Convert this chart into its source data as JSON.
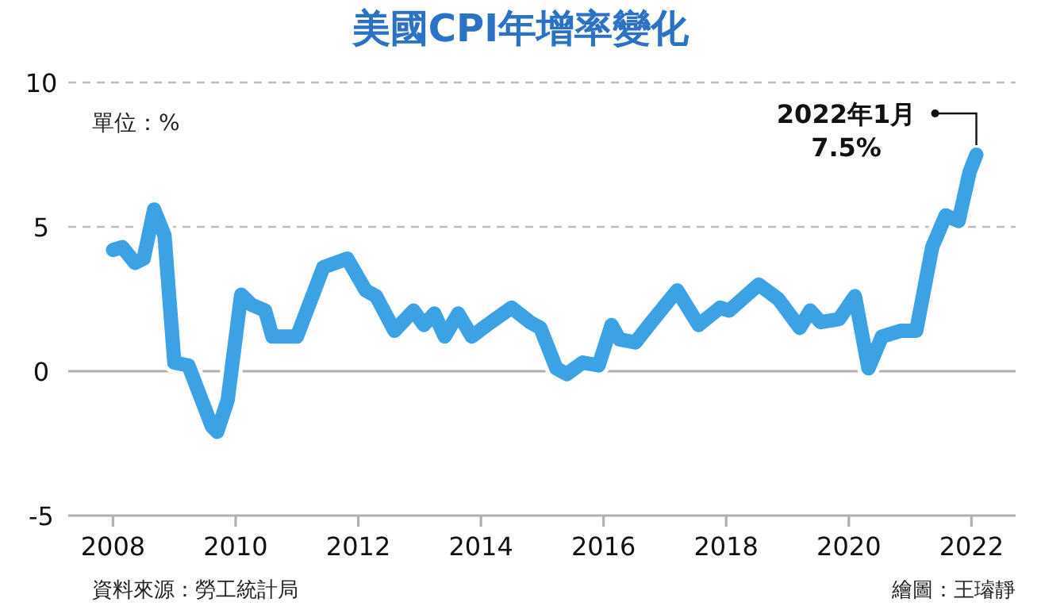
{
  "chart_data": {
    "type": "line",
    "title": "美國CPI年增率變化",
    "annotations": [
      "單位：%",
      {
        "text": "2022年1月\n7.5%",
        "x": 2022.08,
        "y": 7.5
      },
      "資料來源：勞工統計局",
      "繪圖：王璿靜"
    ],
    "x": [
      2008.0,
      2008.15,
      2008.36,
      2008.5,
      2008.67,
      2008.84,
      2009.0,
      2009.23,
      2009.61,
      2009.7,
      2009.87,
      2010.09,
      2010.26,
      2010.48,
      2010.6,
      2011.0,
      2011.43,
      2011.82,
      2012.12,
      2012.29,
      2012.59,
      2012.9,
      2013.07,
      2013.24,
      2013.41,
      2013.63,
      2013.85,
      2014.1,
      2014.5,
      2014.8,
      2014.97,
      2015.23,
      2015.4,
      2015.66,
      2015.92,
      2016.13,
      2016.26,
      2016.52,
      2016.78,
      2017.2,
      2017.55,
      2017.9,
      2018.05,
      2018.53,
      2018.85,
      2019.2,
      2019.37,
      2019.54,
      2019.84,
      2020.1,
      2020.32,
      2020.54,
      2020.84,
      2021.1,
      2021.36,
      2021.58,
      2021.79,
      2021.97,
      2022.08
    ],
    "series": [
      {
        "color": "#3da2e3",
        "values": [
          4.2,
          4.3,
          3.75,
          3.9,
          5.6,
          4.7,
          0.3,
          0.2,
          -1.9,
          -2.1,
          -1.0,
          2.65,
          2.3,
          2.1,
          1.2,
          1.2,
          3.6,
          3.9,
          2.8,
          2.6,
          1.4,
          2.1,
          1.6,
          2.0,
          1.2,
          2.0,
          1.2,
          1.6,
          2.2,
          1.7,
          1.5,
          0.1,
          -0.1,
          0.3,
          0.2,
          1.6,
          1.1,
          1.0,
          1.7,
          2.8,
          1.6,
          2.2,
          2.1,
          3.0,
          2.5,
          1.5,
          2.1,
          1.7,
          1.8,
          2.6,
          0.1,
          1.2,
          1.4,
          1.4,
          4.3,
          5.4,
          5.2,
          6.9,
          7.5
        ]
      }
    ],
    "xlim": [
      2007.27,
      2022.72
    ],
    "ylim": [
      -5,
      10
    ],
    "xticks": [
      2008,
      2010,
      2012,
      2014,
      2016,
      2018,
      2020,
      2022
    ],
    "yticks": [
      -5,
      0,
      5,
      10
    ],
    "line_style": "solid",
    "ref_lines": [
      {
        "axis": "y",
        "value": 0,
        "color": "#b0b0b0",
        "line_style": "solid"
      },
      {
        "axis": "y",
        "value": 5,
        "color": "#bdbdbd",
        "line_style": "dashed"
      },
      {
        "axis": "y",
        "value": 10,
        "color": "#bdbdbd",
        "line_style": "dashed"
      }
    ]
  }
}
